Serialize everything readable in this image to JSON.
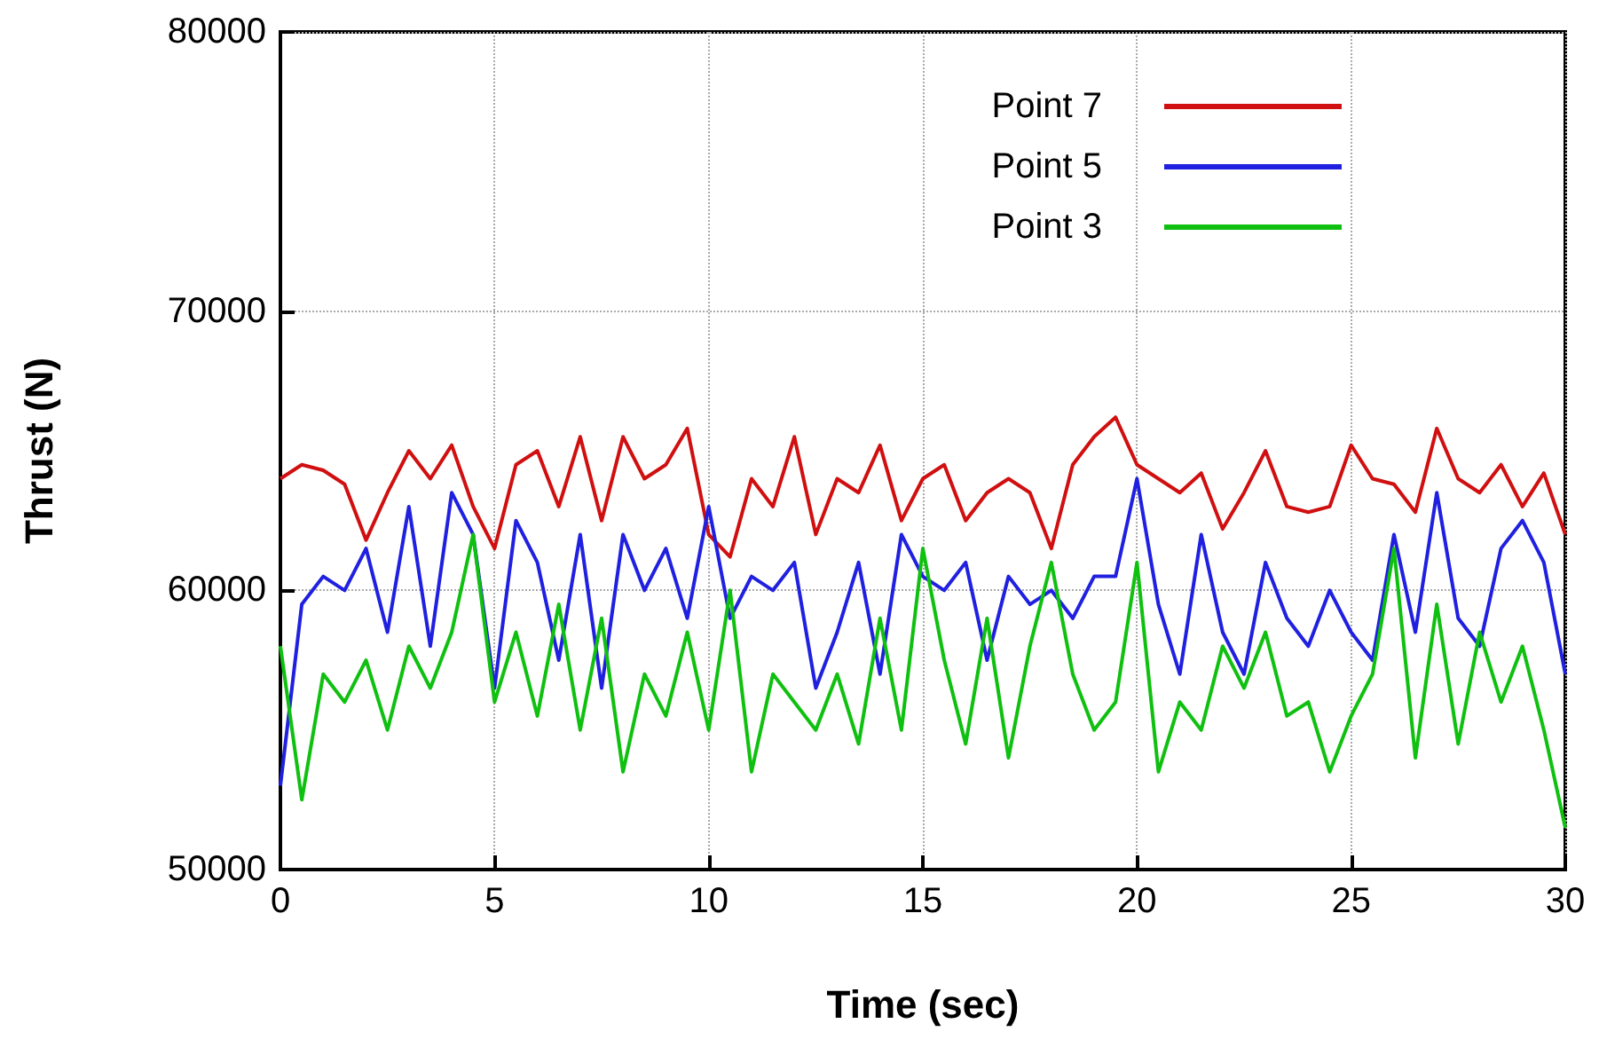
{
  "chart_data": {
    "type": "line",
    "xlabel": "Time (sec)",
    "ylabel": "Thrust (N)",
    "x": [
      0,
      0.5,
      1,
      1.5,
      2,
      2.5,
      3,
      3.5,
      4,
      4.5,
      5,
      5.5,
      6,
      6.5,
      7,
      7.5,
      8,
      8.5,
      9,
      9.5,
      10,
      10.5,
      11,
      11.5,
      12,
      12.5,
      13,
      13.5,
      14,
      14.5,
      15,
      15.5,
      16,
      16.5,
      17,
      17.5,
      18,
      18.5,
      19,
      19.5,
      20,
      20.5,
      21,
      21.5,
      22,
      22.5,
      23,
      23.5,
      24,
      24.5,
      25,
      25.5,
      26,
      26.5,
      27,
      27.5,
      28,
      28.5,
      29,
      29.5,
      30
    ],
    "series": [
      {
        "name": "Point 7",
        "color": "#d01010",
        "values": [
          64000,
          64500,
          64300,
          63800,
          61800,
          63500,
          65000,
          64000,
          65200,
          63000,
          61500,
          64500,
          65000,
          63000,
          65500,
          62500,
          65500,
          64000,
          64500,
          65800,
          62000,
          61200,
          64000,
          63000,
          65500,
          62000,
          64000,
          63500,
          65200,
          62500,
          64000,
          64500,
          62500,
          63500,
          64000,
          63500,
          61500,
          64500,
          65500,
          66200,
          64500,
          64000,
          63500,
          64200,
          62200,
          63500,
          65000,
          63000,
          62800,
          63000,
          65200,
          64000,
          63800,
          62800,
          65800,
          64000,
          63500,
          64500,
          63000,
          64200,
          62000
        ]
      },
      {
        "name": "Point 5",
        "color": "#2020e0",
        "values": [
          53000,
          59500,
          60500,
          60000,
          61500,
          58500,
          63000,
          58000,
          63500,
          62000,
          56500,
          62500,
          61000,
          57500,
          62000,
          56500,
          62000,
          60000,
          61500,
          59000,
          63000,
          59000,
          60500,
          60000,
          61000,
          56500,
          58500,
          61000,
          57000,
          62000,
          60500,
          60000,
          61000,
          57500,
          60500,
          59500,
          60000,
          59000,
          60500,
          60500,
          64000,
          59500,
          57000,
          62000,
          58500,
          57000,
          61000,
          59000,
          58000,
          60000,
          58500,
          57500,
          62000,
          58500,
          63500,
          59000,
          58000,
          61500,
          62500,
          61000,
          57000
        ]
      },
      {
        "name": "Point 3",
        "color": "#10c010",
        "values": [
          58000,
          52500,
          57000,
          56000,
          57500,
          55000,
          58000,
          56500,
          58500,
          62000,
          56000,
          58500,
          55500,
          59500,
          55000,
          59000,
          53500,
          57000,
          55500,
          58500,
          55000,
          60000,
          53500,
          57000,
          56000,
          55000,
          57000,
          54500,
          59000,
          55000,
          61500,
          57500,
          54500,
          59000,
          54000,
          58000,
          61000,
          57000,
          55000,
          56000,
          61000,
          53500,
          56000,
          55000,
          58000,
          56500,
          58500,
          55500,
          56000,
          53500,
          55500,
          57000,
          61500,
          54000,
          59500,
          54500,
          58500,
          56000,
          58000,
          55000,
          51500
        ]
      }
    ],
    "xlim": [
      0,
      30
    ],
    "xticks": [
      0,
      5,
      10,
      15,
      20,
      25,
      30
    ],
    "ylim": [
      50000,
      80000
    ],
    "yticks": [
      50000,
      60000,
      70000,
      80000
    ],
    "grid": true,
    "legend": "top right",
    "marker": "none",
    "line_style": "solid"
  }
}
